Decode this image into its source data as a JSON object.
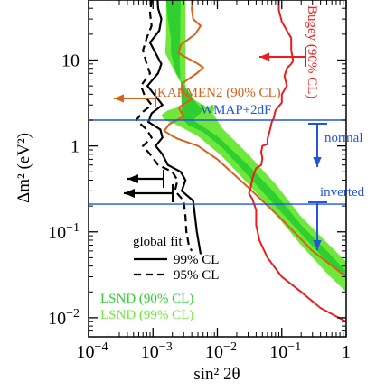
{
  "chart_data": {
    "type": "line",
    "xlabel": "sin² 2θ",
    "ylabel": "Δm² (eV²)",
    "xscale": "log",
    "yscale": "log",
    "xlim": [
      0.0001,
      1
    ],
    "ylim": [
      0.006,
      50
    ],
    "xticks": [
      {
        "value": 0.0001,
        "base": "10",
        "exp": "−4"
      },
      {
        "value": 0.001,
        "base": "10",
        "exp": "−3"
      },
      {
        "value": 0.01,
        "base": "10",
        "exp": "−2"
      },
      {
        "value": 0.1,
        "base": "10",
        "exp": "−1"
      },
      {
        "value": 1,
        "base": "1",
        "exp": ""
      }
    ],
    "yticks": [
      {
        "value": 0.01,
        "base": "10",
        "exp": "−2"
      },
      {
        "value": 0.1,
        "base": "10",
        "exp": "−1"
      },
      {
        "value": 1,
        "base": "1",
        "exp": ""
      },
      {
        "value": 10,
        "base": "10",
        "exp": ""
      }
    ],
    "colors": {
      "lsnd99": "#6fe83c",
      "lsnd90": "#2fcf2f",
      "bugey": "#ee1c1c",
      "karmen": "#d9601a",
      "wmap": "#2255dd",
      "global": "#000000"
    },
    "lsnd_99_region": {
      "upper": [
        [
          0.0016,
          50
        ],
        [
          0.0016,
          20
        ],
        [
          0.00155,
          12
        ],
        [
          0.0025,
          6
        ],
        [
          0.004,
          3.6
        ],
        [
          0.0065,
          2.9
        ],
        [
          0.0095,
          2.9
        ],
        [
          0.0085,
          2.4
        ],
        [
          0.012,
          1.6
        ],
        [
          0.03,
          0.8
        ],
        [
          0.08,
          0.36
        ],
        [
          0.2,
          0.15
        ],
        [
          0.5,
          0.075
        ],
        [
          1,
          0.045
        ]
      ],
      "lower": [
        [
          1,
          0.02
        ],
        [
          0.5,
          0.033
        ],
        [
          0.2,
          0.07
        ],
        [
          0.08,
          0.16
        ],
        [
          0.03,
          0.36
        ],
        [
          0.012,
          0.75
        ],
        [
          0.005,
          1.3
        ],
        [
          0.003,
          1.6
        ],
        [
          0.0022,
          1.8
        ],
        [
          0.0015,
          2.0
        ],
        [
          0.00135,
          2.3
        ],
        [
          0.0017,
          2.6
        ],
        [
          0.0032,
          3.0
        ],
        [
          0.0032,
          7
        ],
        [
          0.0032,
          20
        ],
        [
          0.0032,
          50
        ]
      ]
    },
    "lsnd_90_region": {
      "upper": [
        [
          0.0016,
          50
        ],
        [
          0.0017,
          30
        ],
        [
          0.0019,
          18
        ],
        [
          0.0019,
          12
        ],
        [
          0.0023,
          7
        ],
        [
          0.0045,
          3.3
        ],
        [
          0.006,
          2.6
        ],
        [
          0.0042,
          2.0
        ],
        [
          0.01,
          1.3
        ],
        [
          0.03,
          0.6
        ],
        [
          0.08,
          0.28
        ],
        [
          0.2,
          0.12
        ],
        [
          0.5,
          0.06
        ],
        [
          1,
          0.035
        ]
      ],
      "lower": [
        [
          1,
          0.03
        ],
        [
          0.5,
          0.045
        ],
        [
          0.2,
          0.095
        ],
        [
          0.08,
          0.2
        ],
        [
          0.03,
          0.45
        ],
        [
          0.012,
          0.95
        ],
        [
          0.006,
          1.45
        ],
        [
          0.0035,
          1.75
        ],
        [
          0.0028,
          2.1
        ],
        [
          0.0028,
          2.8
        ],
        [
          0.0026,
          10
        ],
        [
          0.0027,
          50
        ]
      ]
    },
    "series": [
      {
        "name": "Bugey (90% CL)",
        "values": [
          [
            0.09,
            50
          ],
          [
            0.09,
            38
          ],
          [
            0.1,
            28
          ],
          [
            0.12,
            22
          ],
          [
            0.14,
            18
          ],
          [
            0.14,
            13
          ],
          [
            0.15,
            9.8
          ],
          [
            0.14,
            9.0
          ],
          [
            0.12,
            8.0
          ],
          [
            0.11,
            6.5
          ],
          [
            0.12,
            5.0
          ],
          [
            0.1,
            4.0
          ],
          [
            0.1,
            3.2
          ],
          [
            0.08,
            2.6
          ],
          [
            0.075,
            2.1
          ],
          [
            0.07,
            1.9
          ],
          [
            0.065,
            1.5
          ],
          [
            0.06,
            1.2
          ],
          [
            0.06,
            1.05
          ],
          [
            0.05,
            1.0
          ],
          [
            0.048,
            0.85
          ],
          [
            0.05,
            0.72
          ],
          [
            0.048,
            0.6
          ],
          [
            0.04,
            0.55
          ],
          [
            0.038,
            0.5
          ],
          [
            0.035,
            0.42
          ],
          [
            0.033,
            0.33
          ],
          [
            0.031,
            0.28
          ],
          [
            0.035,
            0.24
          ],
          [
            0.04,
            0.18
          ],
          [
            0.04,
            0.12
          ],
          [
            0.045,
            0.08
          ],
          [
            0.06,
            0.05
          ],
          [
            0.1,
            0.03
          ],
          [
            0.2,
            0.02
          ],
          [
            0.4,
            0.013
          ],
          [
            1,
            0.009
          ]
        ]
      },
      {
        "name": "KARMEN2 (90% CL)",
        "values": [
          [
            0.0042,
            50
          ],
          [
            0.004,
            40
          ],
          [
            0.0042,
            30
          ],
          [
            0.0055,
            25
          ],
          [
            0.0045,
            20
          ],
          [
            0.0027,
            15
          ],
          [
            0.0025,
            12
          ],
          [
            0.005,
            9
          ],
          [
            0.006,
            8.2
          ],
          [
            0.0048,
            7
          ],
          [
            0.003,
            5.5
          ],
          [
            0.0027,
            4.5
          ],
          [
            0.004,
            3.5
          ],
          [
            0.0025,
            2.8
          ],
          [
            0.003,
            2.2
          ],
          [
            0.0018,
            1.8
          ],
          [
            0.0015,
            1.5
          ],
          [
            0.002,
            1.3
          ],
          [
            0.0025,
            1.2
          ],
          [
            0.005,
            1.0
          ],
          [
            0.01,
            0.7
          ],
          [
            0.03,
            0.33
          ],
          [
            0.1,
            0.14
          ],
          [
            0.3,
            0.06
          ],
          [
            1,
            0.03
          ]
        ]
      },
      {
        "name": "99% CL",
        "values": [
          [
            0.00118,
            50
          ],
          [
            0.0012,
            40
          ],
          [
            0.00135,
            30
          ],
          [
            0.00125,
            22
          ],
          [
            0.0009,
            16
          ],
          [
            0.0011,
            12
          ],
          [
            0.00135,
            9
          ],
          [
            0.0012,
            7
          ],
          [
            0.00082,
            5
          ],
          [
            0.0011,
            3.8
          ],
          [
            0.0014,
            3.0
          ],
          [
            0.00095,
            2.4
          ],
          [
            0.00085,
            1.9
          ],
          [
            0.0013,
            1.55
          ],
          [
            0.0014,
            1.25
          ],
          [
            0.0011,
            1.0
          ],
          [
            0.0014,
            0.8
          ],
          [
            0.0017,
            0.6
          ],
          [
            0.0027,
            0.5
          ],
          [
            0.0032,
            0.4
          ],
          [
            0.0028,
            0.3
          ],
          [
            0.0042,
            0.23
          ],
          [
            0.0045,
            0.15
          ],
          [
            0.0048,
            0.1
          ],
          [
            0.0052,
            0.07
          ],
          [
            0.0055,
            0.055
          ]
        ]
      },
      {
        "name": "95% CL",
        "values": [
          [
            0.00095,
            50
          ],
          [
            0.0009,
            35
          ],
          [
            0.00095,
            25
          ],
          [
            0.0008,
            18
          ],
          [
            0.0007,
            13
          ],
          [
            0.0008,
            9
          ],
          [
            0.0009,
            7
          ],
          [
            0.00065,
            5
          ],
          [
            0.00075,
            3.8
          ],
          [
            0.00095,
            3.0
          ],
          [
            0.0007,
            2.5
          ],
          [
            0.00055,
            2.0
          ],
          [
            0.0008,
            1.55
          ],
          [
            0.00095,
            1.25
          ],
          [
            0.0007,
            1.0
          ],
          [
            0.0009,
            0.8
          ],
          [
            0.0012,
            0.6
          ],
          [
            0.002,
            0.5
          ],
          [
            0.0024,
            0.4
          ],
          [
            0.0022,
            0.3
          ],
          [
            0.003,
            0.23
          ],
          [
            0.0032,
            0.15
          ],
          [
            0.0033,
            0.1
          ],
          [
            0.0036,
            0.07
          ],
          [
            0.004,
            0.06
          ]
        ]
      }
    ],
    "wmap_lines": [
      2,
      0.21
    ],
    "texts": {
      "bugey": "Bugey (90% CL)",
      "karmen": "KARMEN2 (90% CL)",
      "wmap": "WMAP+2dF",
      "normal": "normal",
      "inverted": "inverted",
      "global_fit": "global fit",
      "cl99": "99% CL",
      "cl95": "95% CL",
      "lsnd90": "LSND (90% CL)",
      "lsnd99": "LSND (99% CL)"
    }
  }
}
